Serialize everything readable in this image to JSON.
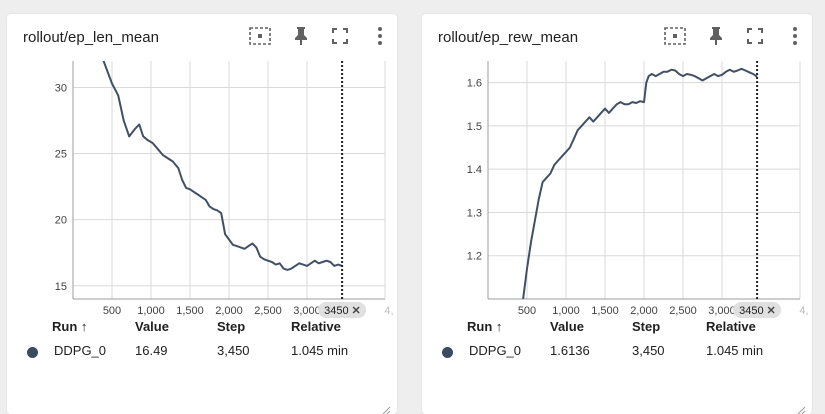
{
  "colors": {
    "series": "#425066",
    "grid": "#dadada",
    "axis": "#9e9e9e"
  },
  "toolbar": {
    "icons": [
      "fit-domain-icon",
      "pin-icon",
      "fullscreen-icon",
      "more-vert-icon"
    ]
  },
  "cards": [
    {
      "title": "rollout/ep_len_mean",
      "table": {
        "headers": {
          "run": "Run ↑",
          "value": "Value",
          "step": "Step",
          "relative": "Relative"
        },
        "row": {
          "run": "DDPG_0",
          "value": "16.49",
          "step": "3,450",
          "relative": "1.045 min"
        }
      },
      "chart_data": {
        "type": "line",
        "xlim": [
          0,
          4000
        ],
        "ylim": [
          14,
          32
        ],
        "x_ticks": [
          "500",
          "1,000",
          "1,500",
          "2,000",
          "2,500",
          "3,000"
        ],
        "x_tick_values": [
          500,
          1000,
          1500,
          2000,
          2500,
          3000
        ],
        "x_tick_faint_left": "",
        "x_tick_faint_right": "4,",
        "y_ticks": [
          "15",
          "20",
          "25",
          "30"
        ],
        "y_tick_values": [
          15,
          20,
          25,
          30
        ],
        "grid": true,
        "hover_step": "3450",
        "hover_x": 3450,
        "series": [
          {
            "name": "DDPG_0",
            "x": [
              380,
              500,
              580,
              650,
              720,
              800,
              850,
              900,
              960,
              1020,
              1080,
              1150,
              1200,
              1280,
              1350,
              1400,
              1450,
              1500,
              1550,
              1600,
              1650,
              1700,
              1750,
              1800,
              1850,
              1900,
              1950,
              2000,
              2050,
              2100,
              2150,
              2200,
              2250,
              2300,
              2350,
              2400,
              2450,
              2500,
              2550,
              2600,
              2650,
              2700,
              2750,
              2800,
              2850,
              2900,
              2950,
              3000,
              3050,
              3100,
              3150,
              3200,
              3250,
              3300,
              3350,
              3400,
              3450
            ],
            "y": [
              32.2,
              30.3,
              29.4,
              27.5,
              26.3,
              26.9,
              27.2,
              26.3,
              26.0,
              25.8,
              25.4,
              24.9,
              24.7,
              24.4,
              23.9,
              23.0,
              22.4,
              22.3,
              22.1,
              21.9,
              21.7,
              21.5,
              21.0,
              20.8,
              20.7,
              20.5,
              18.9,
              18.5,
              18.1,
              18.0,
              17.9,
              17.8,
              18.0,
              18.2,
              17.9,
              17.2,
              17.0,
              16.9,
              16.8,
              16.6,
              16.7,
              16.3,
              16.2,
              16.3,
              16.5,
              16.7,
              16.6,
              16.5,
              16.7,
              16.9,
              16.7,
              16.8,
              16.9,
              16.8,
              16.5,
              16.6,
              16.5
            ]
          }
        ]
      }
    },
    {
      "title": "rollout/ep_rew_mean",
      "table": {
        "headers": {
          "run": "Run ↑",
          "value": "Value",
          "step": "Step",
          "relative": "Relative"
        },
        "row": {
          "run": "DDPG_0",
          "value": "1.6136",
          "step": "3,450",
          "relative": "1.045 min"
        }
      },
      "chart_data": {
        "type": "line",
        "xlim": [
          0,
          4000
        ],
        "ylim": [
          1.1,
          1.65
        ],
        "x_ticks": [
          "500",
          "1,000",
          "1,500",
          "2,000",
          "2,500",
          "3,000"
        ],
        "x_tick_values": [
          500,
          1000,
          1500,
          2000,
          2500,
          3000
        ],
        "x_tick_faint_left": "",
        "x_tick_faint_right": "4,",
        "y_ticks": [
          "1.2",
          "1.3",
          "1.4",
          "1.5",
          "1.6"
        ],
        "y_tick_values": [
          1.2,
          1.3,
          1.4,
          1.5,
          1.6
        ],
        "grid": true,
        "hover_step": "3450",
        "hover_x": 3450,
        "series": [
          {
            "name": "DDPG_0",
            "x": [
              450,
              500,
              550,
              600,
              650,
              700,
              750,
              800,
              850,
              900,
              950,
              1000,
              1050,
              1100,
              1150,
              1200,
              1250,
              1300,
              1350,
              1400,
              1450,
              1500,
              1550,
              1600,
              1650,
              1700,
              1750,
              1800,
              1850,
              1900,
              1950,
              2000,
              2030,
              2060,
              2100,
              2150,
              2200,
              2250,
              2300,
              2350,
              2400,
              2450,
              2500,
              2550,
              2600,
              2650,
              2700,
              2750,
              2800,
              2850,
              2900,
              2950,
              3000,
              3050,
              3100,
              3150,
              3200,
              3250,
              3300,
              3350,
              3400,
              3450
            ],
            "y": [
              1.1,
              1.17,
              1.23,
              1.28,
              1.33,
              1.37,
              1.38,
              1.39,
              1.41,
              1.42,
              1.43,
              1.44,
              1.45,
              1.47,
              1.49,
              1.5,
              1.51,
              1.52,
              1.51,
              1.52,
              1.53,
              1.54,
              1.53,
              1.54,
              1.55,
              1.555,
              1.55,
              1.55,
              1.555,
              1.553,
              1.557,
              1.555,
              1.6,
              1.615,
              1.62,
              1.615,
              1.62,
              1.625,
              1.625,
              1.63,
              1.628,
              1.62,
              1.615,
              1.62,
              1.618,
              1.615,
              1.61,
              1.605,
              1.61,
              1.615,
              1.62,
              1.615,
              1.618,
              1.625,
              1.63,
              1.625,
              1.628,
              1.632,
              1.628,
              1.624,
              1.62,
              1.6136
            ]
          }
        ]
      }
    }
  ]
}
